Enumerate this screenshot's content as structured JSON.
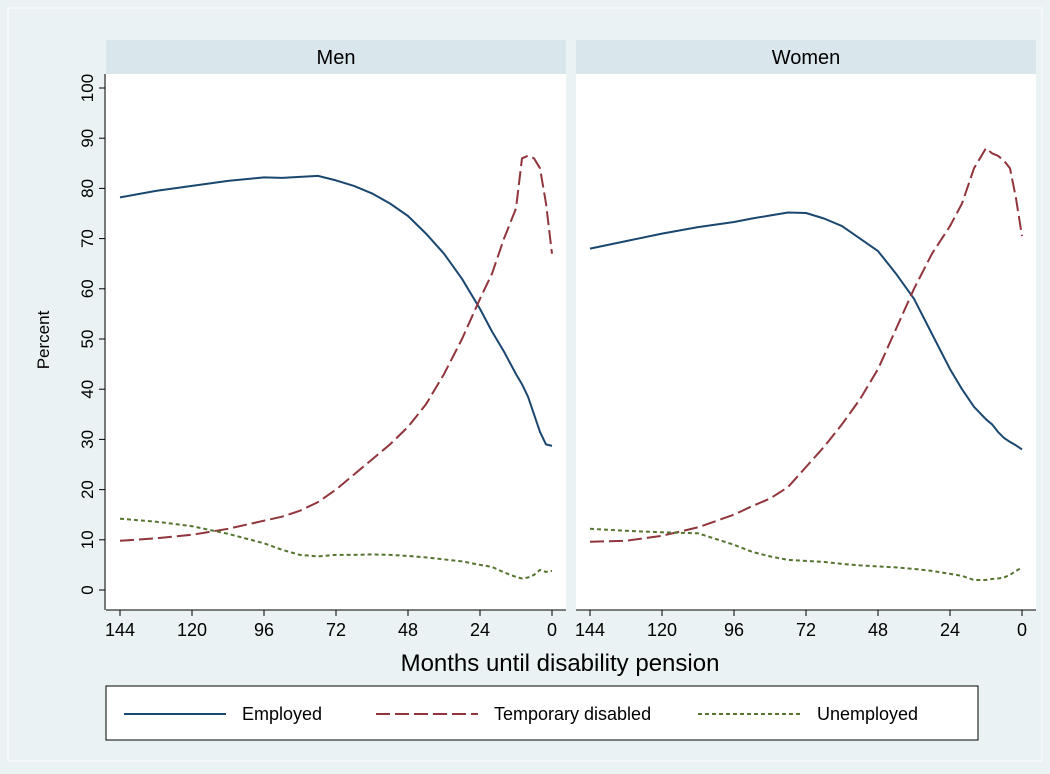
{
  "chart_data": {
    "type": "line",
    "ylabel": "Percent",
    "xlabel": "Months until disability pension",
    "xlim": [
      144,
      0
    ],
    "ylim": [
      0,
      100
    ],
    "x_ticks": [
      144,
      120,
      96,
      72,
      48,
      24,
      0
    ],
    "y_ticks": [
      0,
      10,
      20,
      30,
      40,
      50,
      60,
      70,
      80,
      90,
      100
    ],
    "grid": false,
    "legend_position": "bottom",
    "legend": [
      {
        "key": "employed",
        "label": "Employed",
        "color": "#1a476f",
        "dash": "solid"
      },
      {
        "key": "temporary_disabled",
        "label": "Temporary disabled",
        "color": "#90353b",
        "dash": "long-dash"
      },
      {
        "key": "unemployed",
        "label": "Unemployed",
        "color": "#55752f",
        "dash": "short-dash"
      }
    ],
    "x": [
      144,
      132,
      120,
      108,
      96,
      90,
      84,
      78,
      72,
      66,
      60,
      54,
      48,
      42,
      36,
      30,
      24,
      20,
      16,
      12,
      10,
      8,
      6,
      4,
      2,
      0
    ],
    "panels": [
      {
        "title": "Men",
        "series": [
          {
            "key": "employed",
            "name": "Employed",
            "values": [
              78.2,
              79.5,
              80.5,
              81.5,
              82.2,
              82.1,
              82.3,
              82.5,
              81.6,
              80.5,
              79.0,
              77.0,
              74.5,
              71.0,
              67.0,
              62.0,
              56.0,
              51.5,
              47.5,
              43.0,
              41.0,
              38.5,
              35.0,
              31.5,
              29.0,
              28.7
            ]
          },
          {
            "key": "temporary_disabled",
            "name": "Temporary disabled",
            "values": [
              9.8,
              10.3,
              11.0,
              12.2,
              13.8,
              14.6,
              15.8,
              17.5,
              20.0,
              23.0,
              26.0,
              29.0,
              32.5,
              37.0,
              43.0,
              50.0,
              58.0,
              63.0,
              70.0,
              76.0,
              86.0,
              86.5,
              86.0,
              84.0,
              77.0,
              67.0
            ]
          },
          {
            "key": "unemployed",
            "name": "Unemployed",
            "values": [
              14.2,
              13.6,
              12.7,
              11.2,
              9.3,
              8.0,
              7.0,
              6.7,
              7.0,
              7.0,
              7.1,
              7.0,
              6.8,
              6.5,
              6.1,
              5.7,
              5.0,
              4.6,
              3.5,
              2.6,
              2.3,
              2.5,
              3.0,
              4.0,
              3.6,
              3.8
            ]
          }
        ]
      },
      {
        "title": "Women",
        "series": [
          {
            "key": "employed",
            "name": "Employed",
            "values": [
              68.0,
              69.5,
              71.0,
              72.3,
              73.3,
              74.0,
              74.6,
              75.2,
              75.1,
              74.0,
              72.5,
              70.0,
              67.5,
              63.0,
              58.0,
              51.0,
              44.0,
              40.0,
              36.5,
              34.0,
              33.0,
              31.5,
              30.3,
              29.5,
              28.8,
              28.0
            ]
          },
          {
            "key": "temporary_disabled",
            "name": "Temporary disabled",
            "values": [
              9.6,
              9.8,
              10.8,
              12.5,
              15.0,
              16.7,
              18.2,
              20.5,
              24.5,
              28.5,
              33.0,
              38.0,
              44.0,
              52.0,
              60.0,
              67.0,
              72.5,
              77.0,
              84.0,
              88.0,
              87.0,
              86.5,
              85.5,
              84.0,
              78.0,
              70.5
            ]
          },
          {
            "key": "unemployed",
            "name": "Unemployed",
            "values": [
              12.2,
              11.8,
              11.5,
              11.3,
              9.0,
              7.6,
              6.7,
              6.0,
              5.8,
              5.6,
              5.2,
              4.9,
              4.7,
              4.5,
              4.2,
              3.8,
              3.2,
              2.8,
              2.0,
              2.0,
              2.2,
              2.3,
              2.5,
              3.0,
              3.8,
              4.5
            ]
          }
        ]
      }
    ]
  }
}
